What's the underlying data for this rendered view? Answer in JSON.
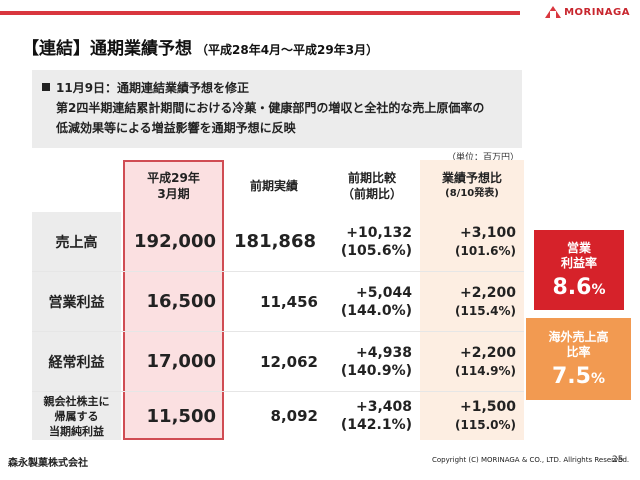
{
  "header": {
    "logo_text": "MORINAGA",
    "title": "【連結】通期業績予想",
    "subtitle": "（平成28年4月～平成29年3月）",
    "accent_color": "#d9363e"
  },
  "notice": {
    "line1": "11月9日：通期連結業績予想を修正",
    "line2": "第2四半期連結累計期間における冷菓・健康部門の増収と全社的な売上原価率の",
    "line3": "低減効果等による増益影響を通期予想に反映"
  },
  "unit": "（単位：百万円）",
  "table": {
    "headers": {
      "forecast_line1": "平成29年",
      "forecast_line2": "3月期",
      "prev": "前期実績",
      "yoy_line1": "前期比較",
      "yoy_line2": "（前期比）",
      "plan_line1": "業績予想比",
      "plan_line2": "(8/10発表)"
    },
    "rows": [
      {
        "label": "売上高",
        "forecast": "192,000",
        "prev": "181,868",
        "yoy_diff": "+10,132",
        "yoy_pct": "(105.6%)",
        "plan_diff": "+3,100",
        "plan_pct": "(101.6%)"
      },
      {
        "label": "営業利益",
        "forecast": "16,500",
        "prev": "11,456",
        "yoy_diff": "+5,044",
        "yoy_pct": "(144.0%)",
        "plan_diff": "+2,200",
        "plan_pct": "(115.4%)"
      },
      {
        "label": "経常利益",
        "forecast": "17,000",
        "prev": "12,062",
        "yoy_diff": "+4,938",
        "yoy_pct": "(140.9%)",
        "plan_diff": "+2,200",
        "plan_pct": "(114.9%)"
      },
      {
        "label_line1": "親会社株主に",
        "label_line2": "帰属する",
        "label_line3": "当期純利益",
        "forecast": "11,500",
        "prev": "8,092",
        "yoy_diff": "+3,408",
        "yoy_pct": "(142.1%)",
        "plan_diff": "+1,500",
        "plan_pct": "(115.0%)"
      }
    ]
  },
  "kpis": [
    {
      "label_line1": "営業",
      "label_line2": "利益率",
      "value": "8.6",
      "unit": "%",
      "color": "#d6222a"
    },
    {
      "label_line1": "海外売上高",
      "label_line2": "比率",
      "value": "7.5",
      "unit": "%",
      "color": "#f29a51"
    }
  ],
  "footer": {
    "company": "森永製菓株式会社",
    "copyright": "Copyright (C) MORINAGA & CO., LTD. Allrights Reserved.",
    "page": "25"
  }
}
